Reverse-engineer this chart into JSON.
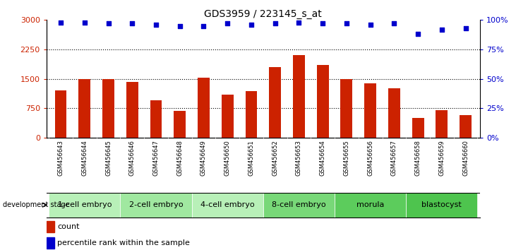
{
  "title": "GDS3959 / 223145_s_at",
  "samples": [
    "GSM456643",
    "GSM456644",
    "GSM456645",
    "GSM456646",
    "GSM456647",
    "GSM456648",
    "GSM456649",
    "GSM456650",
    "GSM456651",
    "GSM456652",
    "GSM456653",
    "GSM456654",
    "GSM456655",
    "GSM456656",
    "GSM456657",
    "GSM456658",
    "GSM456659",
    "GSM456660"
  ],
  "counts": [
    1200,
    1500,
    1500,
    1420,
    950,
    680,
    1520,
    1100,
    1180,
    1800,
    2100,
    1850,
    1500,
    1380,
    1250,
    500,
    700,
    580
  ],
  "percentiles": [
    98,
    98,
    97,
    97,
    96,
    95,
    95,
    97,
    96,
    97,
    98,
    97,
    97,
    96,
    97,
    88,
    92,
    93
  ],
  "stages": [
    {
      "label": "1-cell embryo",
      "start": 0,
      "end": 3,
      "color": "#b8f0b8"
    },
    {
      "label": "2-cell embryo",
      "start": 3,
      "end": 6,
      "color": "#a0e8a0"
    },
    {
      "label": "4-cell embryo",
      "start": 6,
      "end": 9,
      "color": "#b8f0b8"
    },
    {
      "label": "8-cell embryo",
      "start": 9,
      "end": 12,
      "color": "#78d878"
    },
    {
      "label": "morula",
      "start": 12,
      "end": 15,
      "color": "#5ccc5c"
    },
    {
      "label": "blastocyst",
      "start": 15,
      "end": 18,
      "color": "#4ec44e"
    }
  ],
  "bar_color": "#cc2200",
  "dot_color": "#0000cc",
  "y_left_max": 3000,
  "y_left_ticks": [
    0,
    750,
    1500,
    2250,
    3000
  ],
  "y_right_max": 100,
  "y_right_ticks": [
    0,
    25,
    50,
    75,
    100
  ],
  "background_color": "#ffffff",
  "title_fontsize": 10,
  "tick_fontsize": 8,
  "label_fontsize": 8,
  "sample_fontsize": 6,
  "legend_fontsize": 8,
  "xlim_left": -0.6,
  "xlim_right": 17.6
}
